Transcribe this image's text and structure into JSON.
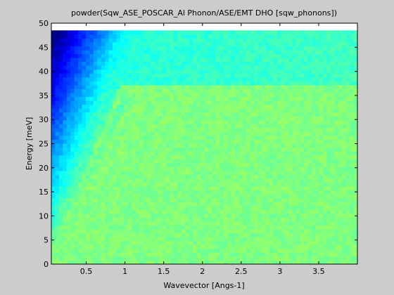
{
  "chart_data": {
    "type": "heatmap",
    "title": "powder(Sqw_ASE_POSCAR_Al Phonon/ASE/EMT DHO [sqw_phonons])",
    "xlabel": "Wavevector [Angs-1]",
    "ylabel": "Energy [meV]",
    "xlim": [
      0.05,
      4.0
    ],
    "ylim": [
      0,
      50
    ],
    "x_ticks": [
      {
        "value": 0.5,
        "label": "0.5"
      },
      {
        "value": 1,
        "label": "1"
      },
      {
        "value": 1.5,
        "label": "1.5"
      },
      {
        "value": 2,
        "label": "2"
      },
      {
        "value": 2.5,
        "label": "2.5"
      },
      {
        "value": 3,
        "label": "3"
      },
      {
        "value": 3.5,
        "label": "3.5"
      }
    ],
    "y_ticks": [
      {
        "value": 0,
        "label": "0"
      },
      {
        "value": 5,
        "label": "5"
      },
      {
        "value": 10,
        "label": "10"
      },
      {
        "value": 15,
        "label": "15"
      },
      {
        "value": 20,
        "label": "20"
      },
      {
        "value": 25,
        "label": "25"
      },
      {
        "value": 30,
        "label": "30"
      },
      {
        "value": 35,
        "label": "35"
      },
      {
        "value": 40,
        "label": "40"
      },
      {
        "value": 45,
        "label": "45"
      },
      {
        "value": 50,
        "label": "50"
      }
    ],
    "data_extent": {
      "x": [
        0.05,
        4.0
      ],
      "y": [
        0,
        48.5
      ]
    },
    "colormap": "jet",
    "grid": false,
    "features": {
      "acoustic_branches_max_energy": 36.5,
      "lower_dome_peak": {
        "q": 1.5,
        "energy": 15
      },
      "lower_dome_q_range": [
        0.9,
        2.5
      ],
      "flat_band_energy_range": [
        20,
        35
      ],
      "high_energy_region": "cyan"
    }
  }
}
